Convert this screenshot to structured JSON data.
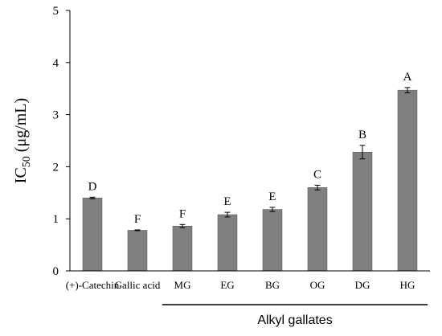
{
  "chart_data": {
    "type": "bar",
    "title": "",
    "xlabel": "",
    "ylabel_main": "IC",
    "ylabel_sub": "50",
    "ylabel_unit": " (μg/mL)",
    "ylim": [
      0,
      5
    ],
    "yticks": [
      0,
      1,
      2,
      3,
      4,
      5
    ],
    "categories": [
      "(+)-Catechin",
      "Gallic acid",
      "MG",
      "EG",
      "BG",
      "OG",
      "DG",
      "HG"
    ],
    "values": [
      1.4,
      0.78,
      0.86,
      1.08,
      1.18,
      1.6,
      2.28,
      3.47
    ],
    "errors": [
      0.015,
      0.008,
      0.03,
      0.045,
      0.04,
      0.045,
      0.13,
      0.05
    ],
    "significance_letters": [
      "D",
      "F",
      "F",
      "E",
      "E",
      "C",
      "B",
      "A"
    ],
    "group": {
      "label": "Alkyl gallates",
      "from_index": 2,
      "to_index": 7
    },
    "bar_color": "#808080",
    "grid": false,
    "legend": "none"
  }
}
